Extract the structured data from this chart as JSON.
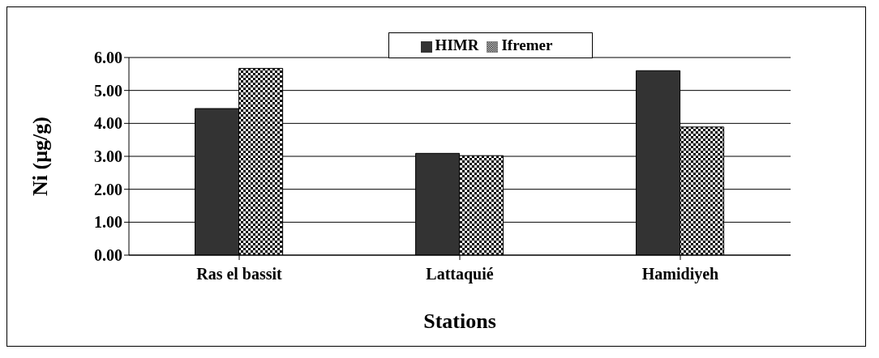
{
  "chart_data": {
    "type": "bar",
    "xlabel": "Stations",
    "ylabel": "Ni (µg/g)",
    "categories": [
      "Ras el bassit",
      "Lattaquié",
      "Hamidiyeh"
    ],
    "series": [
      {
        "name": "HIMR",
        "color": "#333333",
        "values": [
          4.45,
          3.09,
          5.6
        ]
      },
      {
        "name": "Ifremer",
        "color": "#000000",
        "values": [
          5.67,
          3.02,
          3.89
        ]
      }
    ],
    "ylim": [
      0,
      6
    ],
    "yticks": [
      {
        "value": 0,
        "label": "0.00"
      },
      {
        "value": 1,
        "label": "1.00"
      },
      {
        "value": 2,
        "label": "2.00"
      },
      {
        "value": 3,
        "label": "3.00"
      },
      {
        "value": 4,
        "label": "4.00"
      },
      {
        "value": 5,
        "label": "5.00"
      },
      {
        "value": 6,
        "label": "6.00"
      }
    ],
    "grid": "y",
    "legend": "top"
  }
}
